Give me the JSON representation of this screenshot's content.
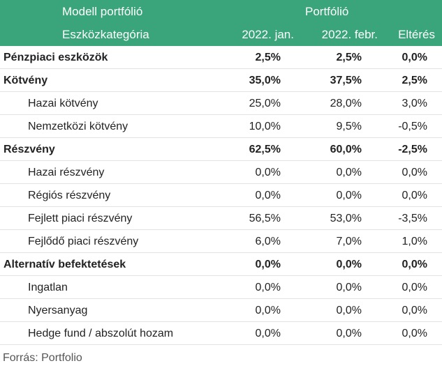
{
  "header": {
    "model_label": "Modell portfólió",
    "portfolio_label": "Portfólió",
    "asset_class_label": "Eszközkategória",
    "col_jan": "2022. jan.",
    "col_feb": "2022. febr.",
    "col_diff": "Eltérés"
  },
  "rows": [
    {
      "label": "Pénzpiaci eszközök",
      "jan": "2,5%",
      "feb": "2,5%",
      "diff": "0,0%",
      "category": true
    },
    {
      "label": "Kötvény",
      "jan": "35,0%",
      "feb": "37,5%",
      "diff": "2,5%",
      "category": true
    },
    {
      "label": "Hazai kötvény",
      "jan": "25,0%",
      "feb": "28,0%",
      "diff": "3,0%",
      "category": false
    },
    {
      "label": "Nemzetközi kötvény",
      "jan": "10,0%",
      "feb": "9,5%",
      "diff": "-0,5%",
      "category": false
    },
    {
      "label": "Részvény",
      "jan": "62,5%",
      "feb": "60,0%",
      "diff": "-2,5%",
      "category": true
    },
    {
      "label": "Hazai részvény",
      "jan": "0,0%",
      "feb": "0,0%",
      "diff": "0,0%",
      "category": false
    },
    {
      "label": "Régiós részvény",
      "jan": "0,0%",
      "feb": "0,0%",
      "diff": "0,0%",
      "category": false
    },
    {
      "label": "Fejlett piaci részvény",
      "jan": "56,5%",
      "feb": "53,0%",
      "diff": "-3,5%",
      "category": false
    },
    {
      "label": "Fejlődő piaci részvény",
      "jan": "6,0%",
      "feb": "7,0%",
      "diff": "1,0%",
      "category": false
    },
    {
      "label": "Alternatív befektetések",
      "jan": "0,0%",
      "feb": "0,0%",
      "diff": "0,0%",
      "category": true
    },
    {
      "label": "Ingatlan",
      "jan": "0,0%",
      "feb": "0,0%",
      "diff": "0,0%",
      "category": false
    },
    {
      "label": "Nyersanyag",
      "jan": "0,0%",
      "feb": "0,0%",
      "diff": "0,0%",
      "category": false
    },
    {
      "label": "Hedge fund / abszolút hozam",
      "jan": "0,0%",
      "feb": "0,0%",
      "diff": "0,0%",
      "category": false
    }
  ],
  "source": "Forrás: Portfolio",
  "colors": {
    "header_bg": "#3aa57a",
    "header_text": "#ffffff"
  }
}
